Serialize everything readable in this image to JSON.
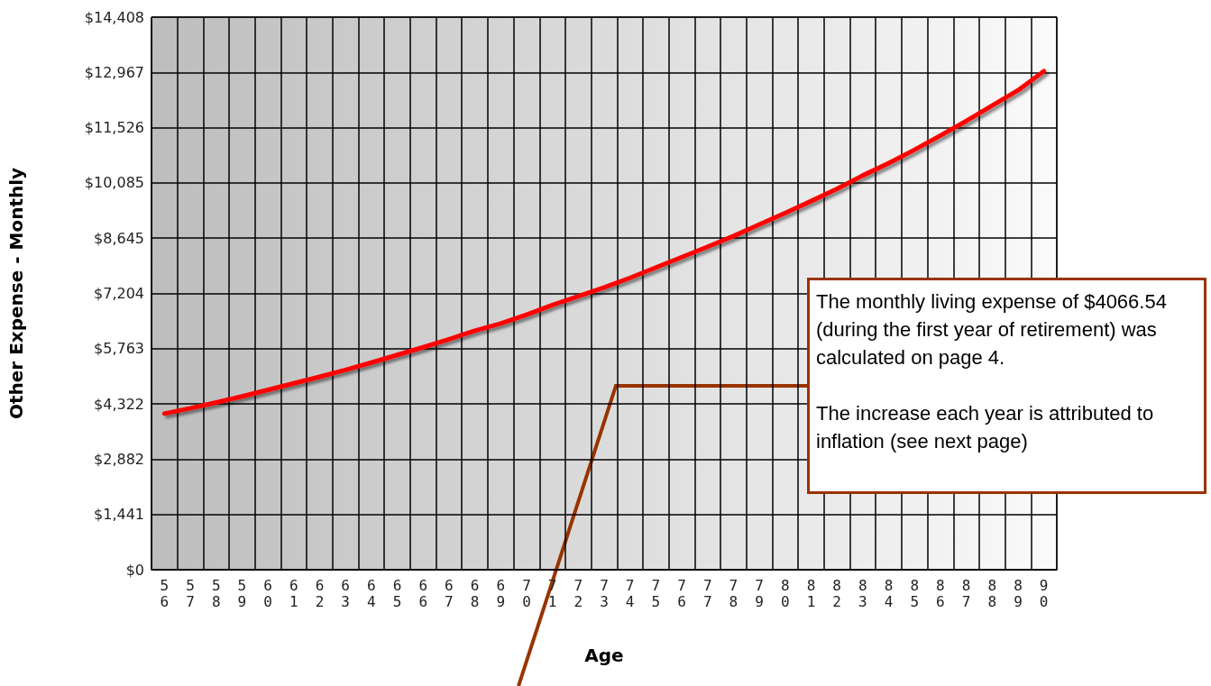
{
  "chart_data": {
    "type": "line",
    "xlabel": "Age",
    "ylabel": "Other Expense - Monthly",
    "categories": [
      "56",
      "57",
      "58",
      "59",
      "60",
      "61",
      "62",
      "63",
      "64",
      "65",
      "66",
      "67",
      "68",
      "69",
      "70",
      "71",
      "72",
      "73",
      "74",
      "75",
      "76",
      "77",
      "78",
      "79",
      "80",
      "81",
      "82",
      "83",
      "84",
      "85",
      "86",
      "87",
      "88",
      "89",
      "90"
    ],
    "series": [
      {
        "color": "#ff0000",
        "values": [
          4070,
          4210,
          4360,
          4520,
          4690,
          4860,
          5030,
          5210,
          5400,
          5600,
          5800,
          6010,
          6230,
          6420,
          6650,
          6900,
          7130,
          7360,
          7610,
          7880,
          8150,
          8420,
          8700,
          9000,
          9300,
          9610,
          9930,
          10280,
          10600,
          10950,
          11320,
          11700,
          12100,
          12500,
          13000
        ]
      }
    ],
    "ylim": [
      0,
      14408
    ],
    "yticks": [
      {
        "value": 0,
        "label": "$0"
      },
      {
        "value": 1441,
        "label": "$1,441"
      },
      {
        "value": 2882,
        "label": "$2,882"
      },
      {
        "value": 4322,
        "label": "$4,322"
      },
      {
        "value": 5763,
        "label": "$5,763"
      },
      {
        "value": 7204,
        "label": "$7,204"
      },
      {
        "value": 8645,
        "label": "$8,645"
      },
      {
        "value": 10085,
        "label": "$10,085"
      },
      {
        "value": 11526,
        "label": "$11,526"
      },
      {
        "value": 12967,
        "label": "$12,967"
      },
      {
        "value": 14408,
        "label": "$14,408"
      }
    ],
    "grid": true,
    "marker": "none",
    "line_style": "solid",
    "annotations": [
      "The monthly living expense of $4066.54 (during the first year of retirement) was calculated on page 4.\n\nThe increase each year is attributed to inflation (see next page)"
    ]
  }
}
